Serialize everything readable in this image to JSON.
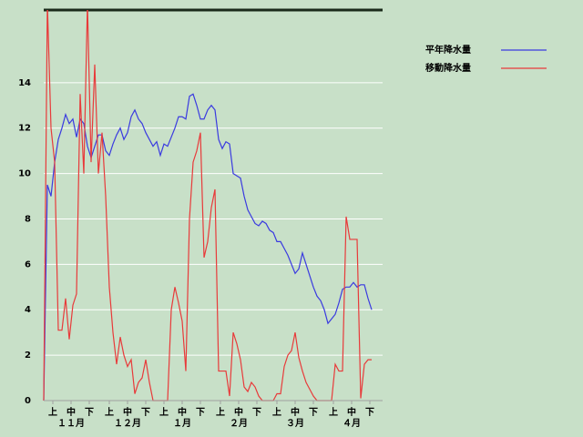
{
  "chart_data": {
    "type": "line",
    "x": [
      0,
      2,
      4,
      6,
      8,
      10,
      12,
      14,
      16,
      18,
      20,
      22,
      24,
      26,
      28,
      30,
      32,
      34,
      36,
      38,
      40,
      42,
      44,
      46,
      48,
      50,
      52,
      54,
      56,
      58,
      60,
      62,
      64,
      66,
      68,
      70,
      72,
      74,
      76,
      78,
      80,
      82,
      84,
      86,
      88,
      90,
      92,
      94,
      96,
      98,
      100,
      102,
      104,
      106,
      108,
      110,
      112,
      114,
      116,
      118,
      120,
      122,
      124,
      126,
      128,
      130,
      132,
      134,
      136,
      138,
      140,
      142,
      144,
      146,
      148,
      150,
      152,
      154,
      156,
      158,
      160,
      162,
      164,
      166,
      168,
      170,
      172,
      174,
      176,
      178,
      180
    ],
    "series": [
      {
        "name": "平年降水量",
        "color": "#3a3ae0",
        "values": [
          0,
          9.5,
          9.0,
          10.5,
          11.5,
          12.0,
          12.6,
          12.2,
          12.4,
          11.6,
          12.4,
          12.2,
          11.2,
          10.7,
          11.2,
          11.7,
          11.7,
          11.0,
          10.8,
          11.3,
          11.7,
          12.0,
          11.5,
          11.8,
          12.5,
          12.8,
          12.4,
          12.2,
          11.8,
          11.5,
          11.2,
          11.4,
          10.8,
          11.3,
          11.2,
          11.6,
          12.0,
          12.5,
          12.5,
          12.4,
          13.4,
          13.5,
          13.0,
          12.4,
          12.4,
          12.8,
          13.0,
          12.8,
          11.5,
          11.1,
          11.4,
          11.3,
          10.0,
          9.9,
          9.8,
          9.0,
          8.4,
          8.1,
          7.8,
          7.7,
          7.9,
          7.8,
          7.5,
          7.4,
          7.0,
          7.0,
          6.7,
          6.4,
          6.0,
          5.6,
          5.8,
          6.5,
          6.0,
          5.5,
          5.0,
          4.6,
          4.4,
          4.0,
          3.4,
          3.6,
          3.8,
          4.3,
          4.9,
          5.0,
          5.0,
          5.2,
          5.0,
          5.1,
          5.1,
          4.5,
          4.0
        ]
      },
      {
        "name": "移動降水量",
        "color": "#e83a3a",
        "values": [
          0,
          17.5,
          12.0,
          10.5,
          3.1,
          3.1,
          4.5,
          2.7,
          4.2,
          4.7,
          13.5,
          10.0,
          17.5,
          10.5,
          14.8,
          10.0,
          11.8,
          9.0,
          5.0,
          3.0,
          1.6,
          2.8,
          2.0,
          1.5,
          1.8,
          0.3,
          0.8,
          1.0,
          1.8,
          0.8,
          0,
          0,
          0,
          0,
          0,
          4.0,
          5.0,
          4.3,
          3.5,
          1.3,
          8.0,
          10.5,
          11.0,
          11.8,
          6.3,
          7.0,
          8.5,
          9.3,
          1.3,
          1.3,
          1.3,
          0.2,
          3.0,
          2.5,
          1.8,
          0.6,
          0.4,
          0.8,
          0.6,
          0.2,
          0,
          0,
          0,
          0,
          0.3,
          0.3,
          1.5,
          2.0,
          2.2,
          3.0,
          1.9,
          1.3,
          0.8,
          0.5,
          0.2,
          0,
          0,
          0,
          0,
          0,
          1.6,
          1.3,
          1.3,
          8.1,
          7.1,
          7.1,
          7.1,
          0.1,
          1.6,
          1.8,
          1.8
        ]
      }
    ],
    "xlim": [
      0,
      186
    ],
    "xticks": [
      {
        "value": 5,
        "label": "上"
      },
      {
        "value": 15,
        "label": "中"
      },
      {
        "value": 25,
        "label": "下"
      },
      {
        "value": 36,
        "label": "上"
      },
      {
        "value": 46,
        "label": "中"
      },
      {
        "value": 56,
        "label": "下"
      },
      {
        "value": 66,
        "label": "上"
      },
      {
        "value": 76,
        "label": "中"
      },
      {
        "value": 86,
        "label": "下"
      },
      {
        "value": 97,
        "label": "上"
      },
      {
        "value": 107,
        "label": "中"
      },
      {
        "value": 117,
        "label": "下"
      },
      {
        "value": 128,
        "label": "上"
      },
      {
        "value": 138,
        "label": "中"
      },
      {
        "value": 148,
        "label": "下"
      },
      {
        "value": 159,
        "label": "上"
      },
      {
        "value": 169,
        "label": "中"
      },
      {
        "value": 179,
        "label": "下"
      }
    ],
    "month_labels": [
      {
        "value": 15,
        "label": "１１月"
      },
      {
        "value": 46,
        "label": "１２月"
      },
      {
        "value": 76,
        "label": "１月"
      },
      {
        "value": 107,
        "label": "２月"
      },
      {
        "value": 138,
        "label": "３月"
      },
      {
        "value": 169,
        "label": "４月"
      }
    ],
    "ylim": [
      0,
      17.2
    ],
    "yticks": [
      0,
      2,
      4,
      6,
      8,
      10,
      12,
      14
    ],
    "grid": true,
    "legend": "right"
  }
}
